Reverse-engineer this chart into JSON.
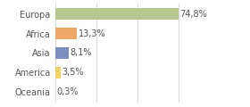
{
  "categories": [
    "Europa",
    "Africa",
    "Asia",
    "America",
    "Oceania"
  ],
  "values": [
    74.8,
    13.3,
    8.1,
    3.5,
    0.3
  ],
  "labels": [
    "74,8%",
    "13,3%",
    "8,1%",
    "3,5%",
    "0,3%"
  ],
  "bar_colors": [
    "#b5c98e",
    "#f0a868",
    "#7b8fbe",
    "#f0d060",
    "#eeeecc"
  ],
  "background_color": "#ffffff",
  "xlim": [
    0,
    100
  ],
  "label_fontsize": 7.0,
  "tick_fontsize": 7.0,
  "bar_height": 0.6
}
